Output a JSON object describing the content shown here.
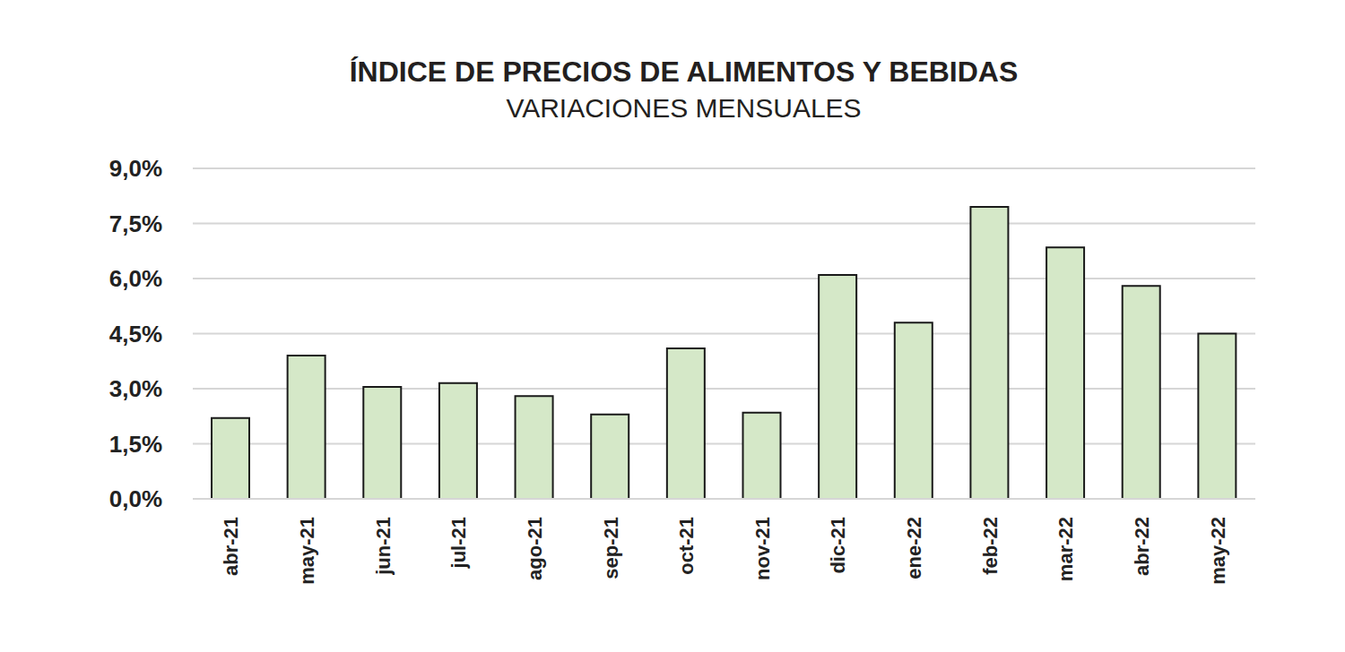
{
  "chart_data": {
    "type": "bar",
    "title": "ÍNDICE DE PRECIOS DE ALIMENTOS Y BEBIDAS",
    "subtitle": "VARIACIONES MENSUALES",
    "categories": [
      "abr-21",
      "may-21",
      "jun-21",
      "jul-21",
      "ago-21",
      "sep-21",
      "oct-21",
      "nov-21",
      "dic-21",
      "ene-22",
      "feb-22",
      "mar-22",
      "abr-22",
      "may-22"
    ],
    "values": [
      2.2,
      3.9,
      3.05,
      3.15,
      2.8,
      2.3,
      4.1,
      2.35,
      6.1,
      4.8,
      7.95,
      6.85,
      5.8,
      4.5
    ],
    "color": "#d5e8c8",
    "ylim": [
      0,
      9
    ],
    "yticks": [
      {
        "value": 0,
        "label": "0,0%"
      },
      {
        "value": 1.5,
        "label": "1,5%"
      },
      {
        "value": 3,
        "label": "3,0%"
      },
      {
        "value": 4.5,
        "label": "4,5%"
      },
      {
        "value": 6,
        "label": "6,0%"
      },
      {
        "value": 7.5,
        "label": "7,5%"
      },
      {
        "value": 9,
        "label": "9,0%"
      }
    ],
    "grid": true
  }
}
